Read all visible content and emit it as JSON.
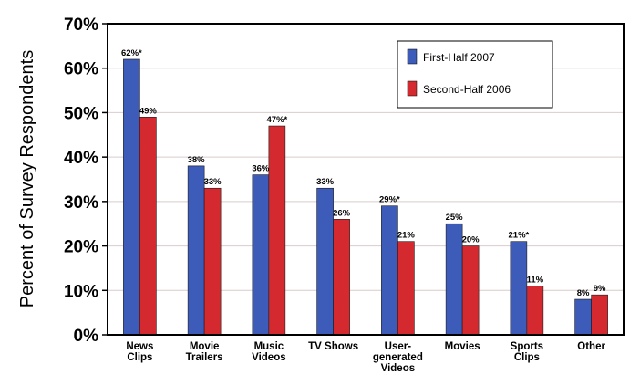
{
  "chart_data": {
    "type": "bar",
    "ylabel": "Percent of Survey Respondents",
    "ylim": [
      0,
      70
    ],
    "yticks": [
      0,
      10,
      20,
      30,
      40,
      50,
      60,
      70
    ],
    "ytick_labels": [
      "0%",
      "10%",
      "20%",
      "30%",
      "40%",
      "50%",
      "60%",
      "70%"
    ],
    "grid": true,
    "legend_position": "top-right",
    "categories": [
      [
        "News",
        "Clips"
      ],
      [
        "Movie",
        "Trailers"
      ],
      [
        "Music",
        "Videos"
      ],
      [
        "TV Shows"
      ],
      [
        "User-",
        "generated",
        "Videos"
      ],
      [
        "Movies"
      ],
      [
        "Sports",
        "Clips"
      ],
      [
        "Other"
      ]
    ],
    "series": [
      {
        "name": "First-Half 2007",
        "color": "#3d5bb8",
        "values": [
          62,
          38,
          36,
          33,
          29,
          25,
          21,
          8
        ],
        "labels": [
          "62%*",
          "38%",
          "36%",
          "33%",
          "29%*",
          "25%",
          "21%*",
          "8%"
        ]
      },
      {
        "name": "Second-Half 2006",
        "color": "#d42a2f",
        "values": [
          49,
          33,
          47,
          26,
          21,
          20,
          11,
          9
        ],
        "labels": [
          "49%",
          "33%",
          "47%*",
          "26%",
          "21%",
          "20%",
          "11%",
          "9%"
        ]
      }
    ]
  }
}
